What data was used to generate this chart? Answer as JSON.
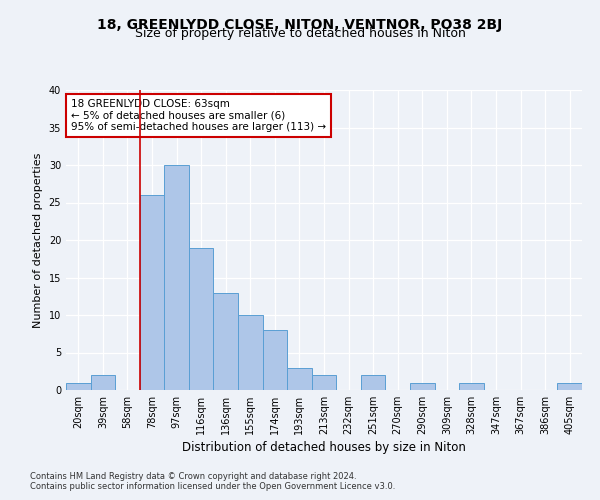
{
  "title": "18, GREENLYDD CLOSE, NITON, VENTNOR, PO38 2BJ",
  "subtitle": "Size of property relative to detached houses in Niton",
  "xlabel": "Distribution of detached houses by size in Niton",
  "ylabel": "Number of detached properties",
  "categories": [
    "20sqm",
    "39sqm",
    "58sqm",
    "78sqm",
    "97sqm",
    "116sqm",
    "136sqm",
    "155sqm",
    "174sqm",
    "193sqm",
    "213sqm",
    "232sqm",
    "251sqm",
    "270sqm",
    "290sqm",
    "309sqm",
    "328sqm",
    "347sqm",
    "367sqm",
    "386sqm",
    "405sqm"
  ],
  "values": [
    1,
    2,
    0,
    26,
    30,
    19,
    13,
    10,
    8,
    3,
    2,
    0,
    2,
    0,
    1,
    0,
    1,
    0,
    0,
    0,
    1
  ],
  "bar_color": "#aec6e8",
  "bar_edgecolor": "#5a9fd4",
  "vline_color": "#cc0000",
  "vline_x_index": 2.5,
  "ylim": [
    0,
    40
  ],
  "yticks": [
    0,
    5,
    10,
    15,
    20,
    25,
    30,
    35,
    40
  ],
  "annotation_line1": "18 GREENLYDD CLOSE: 63sqm",
  "annotation_line2": "← 5% of detached houses are smaller (6)",
  "annotation_line3": "95% of semi-detached houses are larger (113) →",
  "annotation_box_color": "#ffffff",
  "annotation_box_edgecolor": "#cc0000",
  "footer1": "Contains HM Land Registry data © Crown copyright and database right 2024.",
  "footer2": "Contains public sector information licensed under the Open Government Licence v3.0.",
  "bg_color": "#eef2f8",
  "grid_color": "#ffffff",
  "title_fontsize": 10,
  "subtitle_fontsize": 9,
  "tick_fontsize": 7,
  "ylabel_fontsize": 8,
  "xlabel_fontsize": 8.5,
  "annotation_fontsize": 7.5,
  "footer_fontsize": 6
}
